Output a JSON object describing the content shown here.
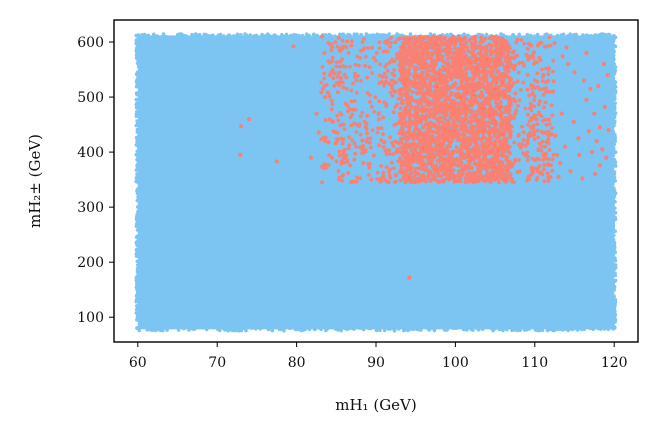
{
  "chart_data": {
    "type": "scatter",
    "xlabel": "mH₁ (GeV)",
    "ylabel": "mH₂± (GeV)",
    "xlim": [
      57,
      123
    ],
    "ylim": [
      55,
      640
    ],
    "xticks": [
      60,
      70,
      80,
      90,
      100,
      110,
      120
    ],
    "yticks": [
      100,
      200,
      300,
      400,
      500,
      600
    ],
    "grid": false,
    "legend": "none",
    "series": [
      {
        "color": "#7cc4f2",
        "region": {
          "x": [
            60,
            120
          ],
          "y": [
            78,
            612
          ]
        },
        "note_fill": "dense uniform scatter"
      },
      {
        "color": "#fa8072",
        "core": {
          "x": [
            85,
            112
          ],
          "y": [
            345,
            610
          ]
        },
        "outliers": [
          [
            73.0,
            447
          ],
          [
            74.0,
            460
          ],
          [
            72.9,
            395
          ],
          [
            77.5,
            383
          ],
          [
            79.6,
            592
          ],
          [
            81.8,
            390
          ],
          [
            94.2,
            172
          ],
          [
            83.2,
            610
          ],
          [
            82.5,
            470
          ],
          [
            82.8,
            436
          ],
          [
            83.5,
            580
          ],
          [
            84.2,
            540
          ],
          [
            83.6,
            500
          ],
          [
            84.6,
            455
          ],
          [
            84.0,
            418
          ],
          [
            112.5,
            598
          ],
          [
            113.5,
            574
          ],
          [
            114.2,
            560
          ],
          [
            115.0,
            545
          ],
          [
            116.2,
            530
          ],
          [
            117.0,
            515
          ],
          [
            116.5,
            495
          ],
          [
            117.5,
            470
          ],
          [
            118.2,
            445
          ],
          [
            117.8,
            420
          ],
          [
            118.5,
            405
          ],
          [
            119.0,
            390
          ],
          [
            118.2,
            376
          ],
          [
            117.6,
            360
          ],
          [
            116.0,
            352
          ],
          [
            114.5,
            365
          ],
          [
            113.2,
            380
          ],
          [
            112.8,
            395
          ],
          [
            113.8,
            410
          ],
          [
            115.5,
            425
          ],
          [
            116.8,
            438
          ],
          [
            114.9,
            455
          ],
          [
            113.4,
            470
          ],
          [
            118.8,
            482
          ],
          [
            119.2,
            540
          ],
          [
            118.0,
            520
          ],
          [
            112.6,
            430
          ],
          [
            115.6,
            395
          ],
          [
            113.0,
            355
          ],
          [
            117.2,
            400
          ],
          [
            119.3,
            440
          ],
          [
            114.0,
            590
          ],
          [
            116.5,
            580
          ],
          [
            118.7,
            560
          ],
          [
            112.3,
            510
          ]
        ]
      }
    ]
  }
}
